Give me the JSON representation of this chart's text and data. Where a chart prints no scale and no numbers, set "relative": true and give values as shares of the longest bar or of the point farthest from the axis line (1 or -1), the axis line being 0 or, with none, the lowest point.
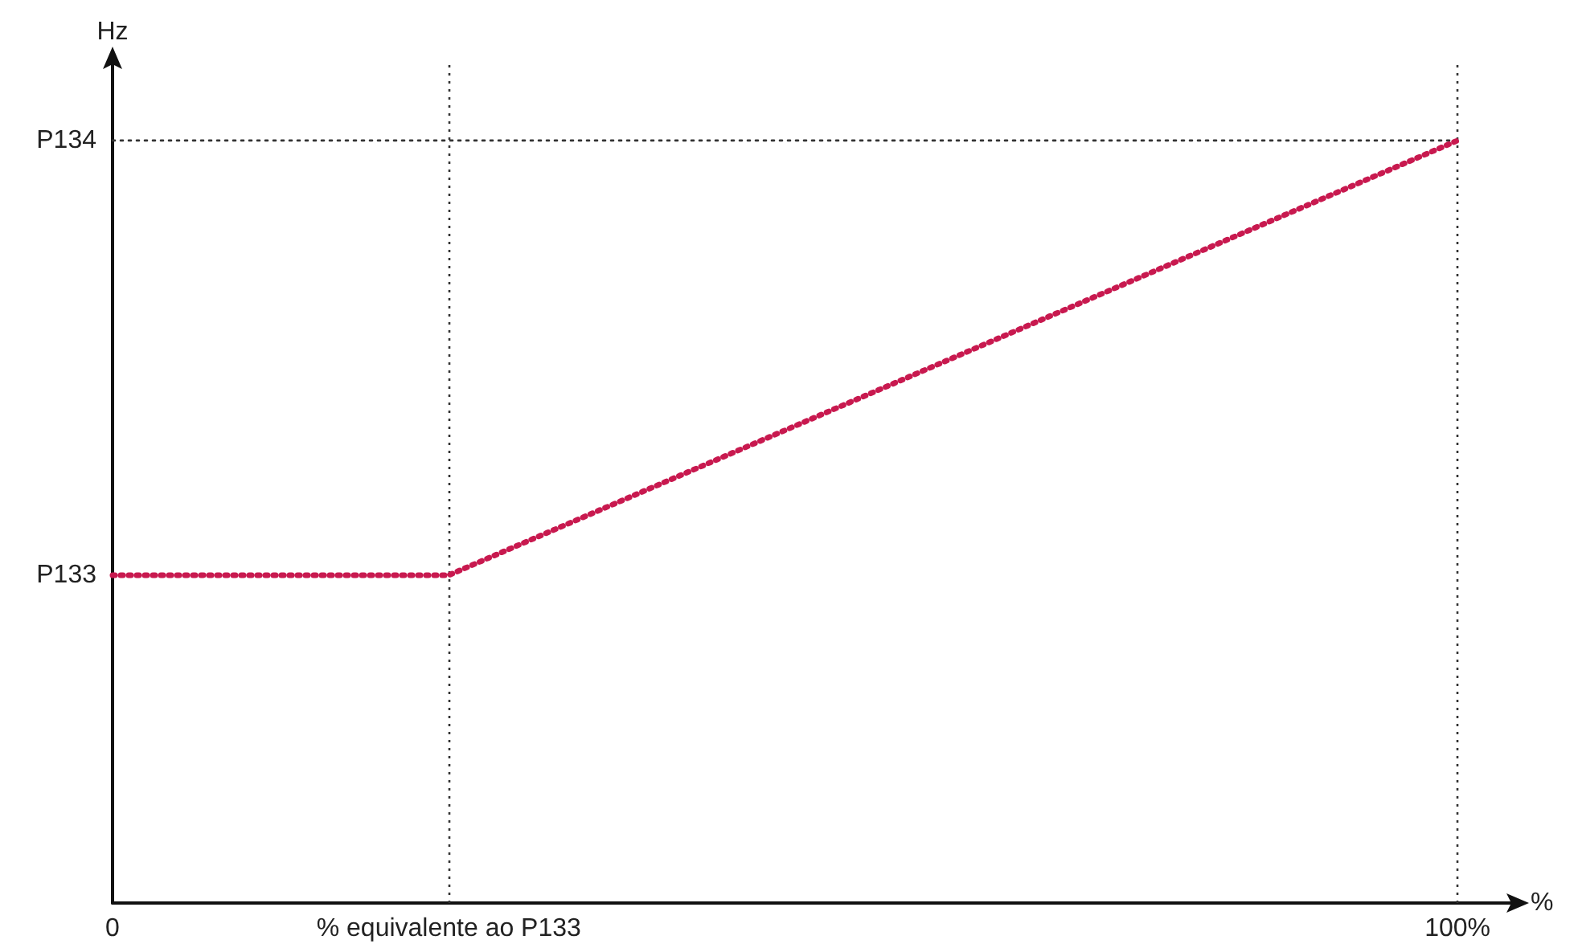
{
  "chart_data": {
    "type": "line",
    "xlabel": "%",
    "ylabel": "Hz",
    "x": [
      0,
      25,
      100
    ],
    "series": [
      {
        "color": "#c8194f",
        "values": [
          0.43,
          0.43,
          1
        ]
      },
      {
        "name": "P134",
        "color": "#333333",
        "x": [
          0,
          100
        ],
        "values": [
          1,
          1
        ]
      }
    ],
    "xlim": [
      0,
      104
    ],
    "xticks": [
      0,
      {
        "value": 25,
        "label": "% equivalente ao P133"
      },
      {
        "value": 100,
        "label": "100%"
      }
    ],
    "relative": true,
    "annotations": [
      {
        "text": "P133",
        "x": 0,
        "y": 0.43
      }
    ],
    "ref_lines": [
      {
        "axis": "x",
        "value": 25,
        "color": "#333333",
        "line_style": "dotted"
      },
      {
        "axis": "x",
        "value": 100,
        "color": "#333333",
        "line_style": "dotted"
      }
    ],
    "marker": "none",
    "line_style": "dotted",
    "grid": false,
    "legend": false
  }
}
